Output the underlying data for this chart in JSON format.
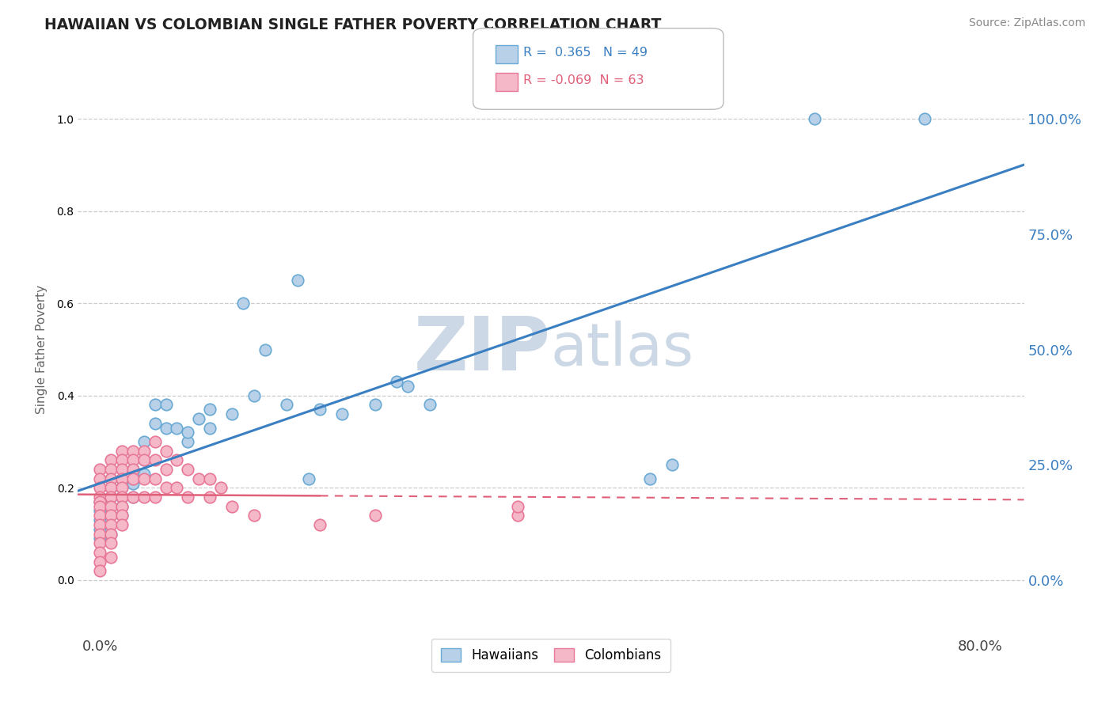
{
  "title": "HAWAIIAN VS COLOMBIAN SINGLE FATHER POVERTY CORRELATION CHART",
  "source": "Source: ZipAtlas.com",
  "ylabel": "Single Father Poverty",
  "ytick_vals": [
    0.0,
    0.25,
    0.5,
    0.75,
    1.0
  ],
  "ytick_labels": [
    "0.0%",
    "25.0%",
    "50.0%",
    "75.0%",
    "100.0%"
  ],
  "xtick_vals": [
    0.0,
    0.8
  ],
  "xtick_labels": [
    "0.0%",
    "80.0%"
  ],
  "xlim": [
    -0.02,
    0.84
  ],
  "ylim": [
    -0.12,
    1.12
  ],
  "hawaiian_R": 0.365,
  "hawaiian_N": 49,
  "colombian_R": -0.069,
  "colombian_N": 63,
  "hawaiian_color": "#b8d0e8",
  "colombian_color": "#f5b8c8",
  "hawaiian_edge_color": "#6aaad4",
  "colombian_edge_color": "#e87898",
  "hawaiian_line_color": "#3a7fc1",
  "colombian_line_color": "#e0607a",
  "watermark_color": "#ccd8e5",
  "hawaiian_x": [
    0.0,
    0.0,
    0.0,
    0.0,
    0.0,
    0.01,
    0.01,
    0.01,
    0.01,
    0.01,
    0.01,
    0.02,
    0.02,
    0.02,
    0.02,
    0.02,
    0.03,
    0.03,
    0.03,
    0.04,
    0.04,
    0.04,
    0.05,
    0.05,
    0.06,
    0.06,
    0.07,
    0.08,
    0.08,
    0.09,
    0.1,
    0.1,
    0.12,
    0.13,
    0.14,
    0.15,
    0.17,
    0.18,
    0.19,
    0.2,
    0.22,
    0.25,
    0.27,
    0.28,
    0.3,
    0.5,
    0.52,
    0.65,
    0.75
  ],
  "hawaiian_y": [
    0.17,
    0.15,
    0.13,
    0.11,
    0.09,
    0.2,
    0.18,
    0.16,
    0.14,
    0.22,
    0.1,
    0.22,
    0.2,
    0.18,
    0.16,
    0.14,
    0.24,
    0.21,
    0.18,
    0.3,
    0.26,
    0.23,
    0.38,
    0.34,
    0.38,
    0.33,
    0.33,
    0.3,
    0.32,
    0.35,
    0.37,
    0.33,
    0.36,
    0.6,
    0.4,
    0.5,
    0.38,
    0.65,
    0.22,
    0.37,
    0.36,
    0.38,
    0.43,
    0.42,
    0.38,
    0.22,
    0.25,
    1.0,
    1.0
  ],
  "colombian_x": [
    0.0,
    0.0,
    0.0,
    0.0,
    0.0,
    0.0,
    0.0,
    0.0,
    0.0,
    0.0,
    0.0,
    0.0,
    0.0,
    0.01,
    0.01,
    0.01,
    0.01,
    0.01,
    0.01,
    0.01,
    0.01,
    0.01,
    0.01,
    0.01,
    0.02,
    0.02,
    0.02,
    0.02,
    0.02,
    0.02,
    0.02,
    0.02,
    0.02,
    0.03,
    0.03,
    0.03,
    0.03,
    0.03,
    0.04,
    0.04,
    0.04,
    0.04,
    0.05,
    0.05,
    0.05,
    0.05,
    0.06,
    0.06,
    0.06,
    0.07,
    0.07,
    0.08,
    0.08,
    0.09,
    0.1,
    0.1,
    0.11,
    0.12,
    0.14,
    0.2,
    0.25,
    0.38,
    0.38
  ],
  "colombian_y": [
    0.24,
    0.22,
    0.2,
    0.18,
    0.17,
    0.16,
    0.14,
    0.12,
    0.1,
    0.08,
    0.06,
    0.04,
    0.02,
    0.26,
    0.24,
    0.22,
    0.2,
    0.18,
    0.16,
    0.14,
    0.12,
    0.1,
    0.08,
    0.05,
    0.28,
    0.26,
    0.24,
    0.22,
    0.2,
    0.18,
    0.16,
    0.14,
    0.12,
    0.28,
    0.26,
    0.24,
    0.22,
    0.18,
    0.28,
    0.26,
    0.22,
    0.18,
    0.3,
    0.26,
    0.22,
    0.18,
    0.28,
    0.24,
    0.2,
    0.26,
    0.2,
    0.24,
    0.18,
    0.22,
    0.22,
    0.18,
    0.2,
    0.16,
    0.14,
    0.12,
    0.14,
    0.14,
    0.16
  ]
}
